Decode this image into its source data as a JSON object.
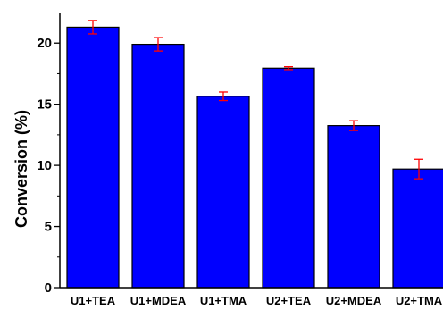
{
  "chart_data": {
    "type": "bar",
    "categories": [
      "U1+TEA",
      "U1+MDEA",
      "U1+TMA",
      "U2+TEA",
      "U2+MDEA",
      "U2+TMA"
    ],
    "values": [
      21.3,
      19.9,
      15.65,
      17.95,
      13.25,
      9.7
    ],
    "errors": [
      0.55,
      0.55,
      0.35,
      0.12,
      0.4,
      0.8
    ],
    "title": "",
    "xlabel": "",
    "ylabel": "Conversion (%)",
    "ylim": [
      0,
      22.5
    ],
    "yticks": [
      0,
      5,
      10,
      15,
      20
    ],
    "grid": false,
    "bar_color": "#0000ff",
    "error_color": "#ff0000"
  }
}
